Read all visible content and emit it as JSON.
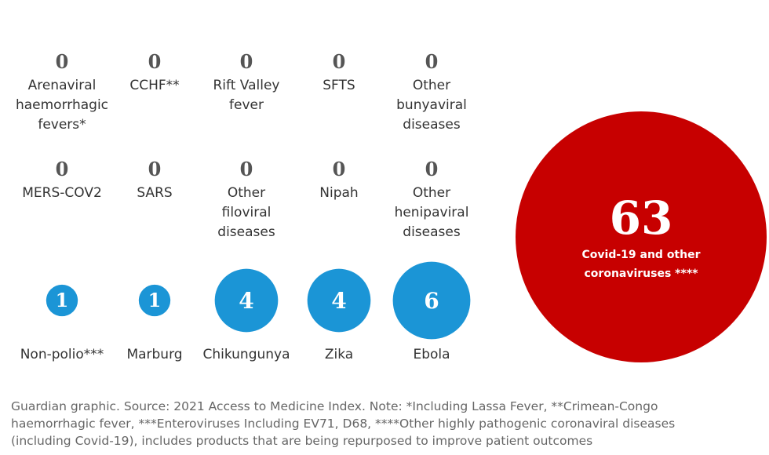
{
  "chart_data": {
    "type": "bubble",
    "title": "",
    "unit": "products",
    "items": [
      {
        "value": 0,
        "label": [
          "Arenaviral",
          "haemorrhagic",
          "fevers*"
        ]
      },
      {
        "value": 0,
        "label": [
          "CCHF**"
        ]
      },
      {
        "value": 0,
        "label": [
          "Rift Valley",
          "fever"
        ]
      },
      {
        "value": 0,
        "label": [
          "SFTS"
        ]
      },
      {
        "value": 0,
        "label": [
          "Other",
          "bunyaviral",
          "diseases"
        ]
      },
      {
        "value": 0,
        "label": [
          "MERS-COV2"
        ]
      },
      {
        "value": 0,
        "label": [
          "SARS"
        ]
      },
      {
        "value": 0,
        "label": [
          "Other",
          "filoviral",
          "diseases"
        ]
      },
      {
        "value": 0,
        "label": [
          "Nipah"
        ]
      },
      {
        "value": 0,
        "label": [
          "Other",
          "henipaviral",
          "diseases"
        ]
      },
      {
        "value": 1,
        "label": [
          "Non-polio***"
        ]
      },
      {
        "value": 1,
        "label": [
          "Marburg"
        ]
      },
      {
        "value": 4,
        "label": [
          "Chikungunya"
        ]
      },
      {
        "value": 4,
        "label": [
          "Zika"
        ]
      },
      {
        "value": 6,
        "label": [
          "Ebola"
        ]
      },
      {
        "value": 63,
        "label": [
          "Covid-19 and other",
          "coronaviruses ****"
        ]
      }
    ],
    "colors": {
      "small": "#1b95d6",
      "large": "#c70000",
      "zero_text": "#555555"
    }
  },
  "footer": {
    "lines": [
      "Guardian graphic. Source: 2021 Access to Medicine Index. Note: *Including Lassa Fever, **Crimean-Congo",
      "haemorrhagic fever, ***Enteroviruses Including EV71, D68, ****Other highly pathogenic coronaviral diseases",
      "(including Covid-19), includes products that are being repurposed to improve patient outcomes"
    ]
  }
}
